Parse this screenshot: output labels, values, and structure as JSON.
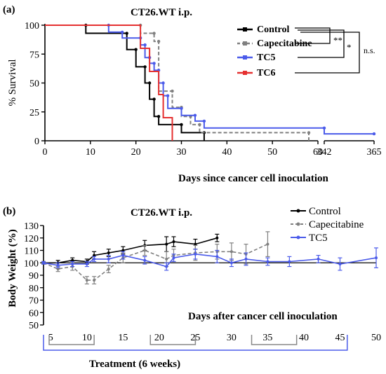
{
  "chart_data": [
    {
      "type": "line",
      "panel_label": "(a)",
      "title": "CT26.WT i.p.",
      "xlabel": "Days since cancer cell inoculation",
      "ylabel": "% Survival",
      "ylim": [
        0,
        100
      ],
      "y_ticks": [
        "0",
        "25",
        "50",
        "75",
        "100"
      ],
      "x_ticks_segment1": [
        "0",
        "10",
        "20",
        "30",
        "40",
        "50",
        "60"
      ],
      "x_ticks_segment2": [
        "342",
        "365"
      ],
      "x_axis_break": [
        60,
        342
      ],
      "step_plot": true,
      "legend_placement": "top-right",
      "significance": [
        {
          "compare": [
            "Control",
            "Capecitabine"
          ],
          "label": "**"
        },
        {
          "compare": [
            "Control",
            "TC5"
          ],
          "label": "*"
        },
        {
          "compare": [
            "Control",
            "TC6"
          ],
          "label": "n.s."
        }
      ],
      "series": [
        {
          "name": "Control",
          "color": "#000000",
          "style": "solid",
          "marker": "circle",
          "points": [
            [
              0,
              100
            ],
            [
              9,
              100
            ],
            [
              9,
              93
            ],
            [
              18,
              93
            ],
            [
              18,
              79
            ],
            [
              20,
              79
            ],
            [
              20,
              64
            ],
            [
              22,
              64
            ],
            [
              22,
              50
            ],
            [
              23,
              50
            ],
            [
              23,
              36
            ],
            [
              24,
              36
            ],
            [
              24,
              21
            ],
            [
              25,
              21
            ],
            [
              25,
              14
            ],
            [
              30,
              14
            ],
            [
              30,
              7
            ],
            [
              35,
              7
            ],
            [
              35,
              0
            ]
          ]
        },
        {
          "name": "Capecitabine",
          "color": "#808080",
          "style": "dashed",
          "marker": "circle",
          "points": [
            [
              0,
              100
            ],
            [
              21,
              100
            ],
            [
              21,
              93
            ],
            [
              24,
              93
            ],
            [
              24,
              86
            ],
            [
              25,
              86
            ],
            [
              25,
              43
            ],
            [
              28,
              43
            ],
            [
              28,
              29
            ],
            [
              30,
              29
            ],
            [
              30,
              21
            ],
            [
              32,
              21
            ],
            [
              32,
              14
            ],
            [
              34,
              14
            ],
            [
              34,
              7
            ],
            [
              58,
              7
            ],
            [
              58,
              0
            ]
          ]
        },
        {
          "name": "TC5",
          "color": "#4b5bea",
          "style": "solid",
          "marker": "circle",
          "points": [
            [
              0,
              100
            ],
            [
              14,
              100
            ],
            [
              14,
              94
            ],
            [
              17,
              94
            ],
            [
              17,
              89
            ],
            [
              21,
              89
            ],
            [
              21,
              83
            ],
            [
              22,
              83
            ],
            [
              22,
              72
            ],
            [
              23,
              72
            ],
            [
              23,
              67
            ],
            [
              24,
              67
            ],
            [
              24,
              61
            ],
            [
              25,
              61
            ],
            [
              25,
              50
            ],
            [
              26,
              50
            ],
            [
              26,
              39
            ],
            [
              27,
              39
            ],
            [
              27,
              28
            ],
            [
              30,
              28
            ],
            [
              30,
              22
            ],
            [
              33,
              22
            ],
            [
              33,
              17
            ],
            [
              35,
              17
            ],
            [
              35,
              11
            ],
            [
              342,
              11
            ],
            [
              342,
              6
            ],
            [
              365,
              6
            ]
          ]
        },
        {
          "name": "TC6",
          "color": "#e53030",
          "style": "solid",
          "marker": "none",
          "points": [
            [
              0,
              100
            ],
            [
              21,
              100
            ],
            [
              21,
              80
            ],
            [
              23,
              80
            ],
            [
              23,
              60
            ],
            [
              25,
              60
            ],
            [
              25,
              40
            ],
            [
              26,
              40
            ],
            [
              26,
              20
            ],
            [
              28,
              20
            ],
            [
              28,
              0
            ]
          ]
        }
      ]
    },
    {
      "type": "line",
      "panel_label": "(b)",
      "title": "CT26.WT i.p.",
      "xlabel": "Days after cancer cell inoculation",
      "ylabel": "Body Weight (%)",
      "ylim": [
        50,
        130
      ],
      "xlim": [
        4,
        50
      ],
      "y_ticks": [
        "50",
        "60",
        "70",
        "80",
        "90",
        "100",
        "110",
        "120",
        "130"
      ],
      "x_ticks": [
        "5",
        "10",
        "15",
        "20",
        "25",
        "30",
        "35",
        "40",
        "45",
        "50"
      ],
      "legend_placement": "top-right",
      "treatment_label": "Treatment (6 weeks)",
      "treatment_span": [
        4,
        46
      ],
      "treatment_cycles": [
        [
          4,
          11
        ],
        [
          18,
          25
        ],
        [
          32,
          39
        ]
      ],
      "series": [
        {
          "name": "Control",
          "color": "#000000",
          "style": "solid",
          "marker": "circle",
          "x": [
            4,
            6,
            8,
            10,
            11,
            13,
            15,
            18,
            21,
            22,
            25,
            28
          ],
          "y": [
            100,
            100,
            102,
            101,
            106,
            108,
            110,
            114,
            115,
            117,
            115,
            120
          ],
          "err": [
            1,
            2,
            2,
            2,
            3,
            3,
            3,
            4,
            6,
            4,
            4,
            3
          ]
        },
        {
          "name": "Capecitabine",
          "color": "#808080",
          "style": "dashed",
          "marker": "circle",
          "x": [
            4,
            6,
            8,
            10,
            11,
            13,
            15,
            18,
            21,
            22,
            25,
            28,
            30,
            32,
            35
          ],
          "y": [
            100,
            95,
            97,
            86,
            86,
            95,
            104,
            110,
            103,
            106,
            108,
            109,
            109,
            107,
            115
          ],
          "err": [
            1,
            2,
            3,
            3,
            3,
            3,
            4,
            4,
            6,
            5,
            6,
            6,
            7,
            8,
            10
          ]
        },
        {
          "name": "TC5",
          "color": "#4b5bea",
          "style": "solid",
          "marker": "circle",
          "x": [
            4,
            6,
            8,
            10,
            11,
            13,
            15,
            18,
            21,
            22,
            25,
            28,
            30,
            32,
            35,
            38,
            42,
            45,
            50
          ],
          "y": [
            100,
            98,
            99,
            99,
            103,
            103,
            106,
            102,
            97,
            104,
            107,
            105,
            100,
            103,
            101,
            101,
            103,
            99,
            104
          ],
          "err": [
            1,
            2,
            2,
            2,
            2,
            3,
            3,
            3,
            3,
            3,
            4,
            5,
            3,
            5,
            3,
            4,
            3,
            5,
            8
          ]
        }
      ]
    }
  ]
}
